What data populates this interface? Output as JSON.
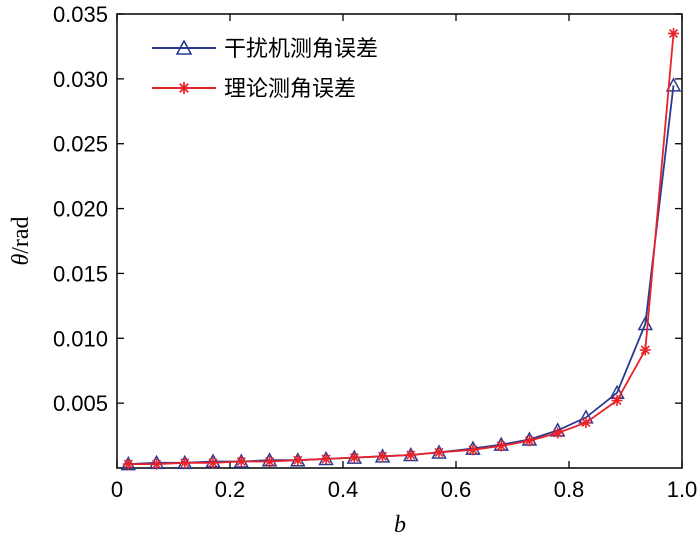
{
  "chart_data": {
    "type": "line",
    "xlabel": "b",
    "ylabel_symbol": "θ",
    "ylabel_unit": "/rad",
    "xlim": [
      0,
      1.0
    ],
    "ylim": [
      0,
      0.035
    ],
    "x_ticks": [
      0,
      0.2,
      0.4,
      0.6,
      0.8,
      1.0
    ],
    "x_tick_labels": [
      "0",
      "0.2",
      "0.4",
      "0.6",
      "0.8",
      "1.0"
    ],
    "y_ticks": [
      0.005,
      0.01,
      0.015,
      0.02,
      0.025,
      0.03,
      0.035
    ],
    "y_tick_labels": [
      "0.005",
      "0.010",
      "0.015",
      "0.020",
      "0.025",
      "0.030",
      "0.035"
    ],
    "grid": false,
    "legend_position": "top-left",
    "x": [
      0.02,
      0.07,
      0.12,
      0.17,
      0.22,
      0.27,
      0.32,
      0.37,
      0.42,
      0.47,
      0.52,
      0.57,
      0.63,
      0.68,
      0.73,
      0.78,
      0.83,
      0.885,
      0.935,
      0.985
    ],
    "series": [
      {
        "name": "干扰机测角误差",
        "color": "#2b3a8f",
        "marker": "triangle",
        "values": [
          0.0003,
          0.0004,
          0.0004,
          0.0005,
          0.0005,
          0.0006,
          0.0006,
          0.0007,
          0.0008,
          0.0009,
          0.001,
          0.0012,
          0.0015,
          0.0018,
          0.0022,
          0.0029,
          0.0039,
          0.0058,
          0.0111,
          0.0295
        ]
      },
      {
        "name": "理论测角误差",
        "color": "#e8232a",
        "marker": "asterisk",
        "values": [
          0.0003,
          0.0003,
          0.0004,
          0.0004,
          0.0005,
          0.0005,
          0.0006,
          0.0007,
          0.0008,
          0.0009,
          0.001,
          0.0012,
          0.0014,
          0.0017,
          0.0021,
          0.0027,
          0.0035,
          0.0052,
          0.0091,
          0.0335
        ]
      }
    ]
  }
}
